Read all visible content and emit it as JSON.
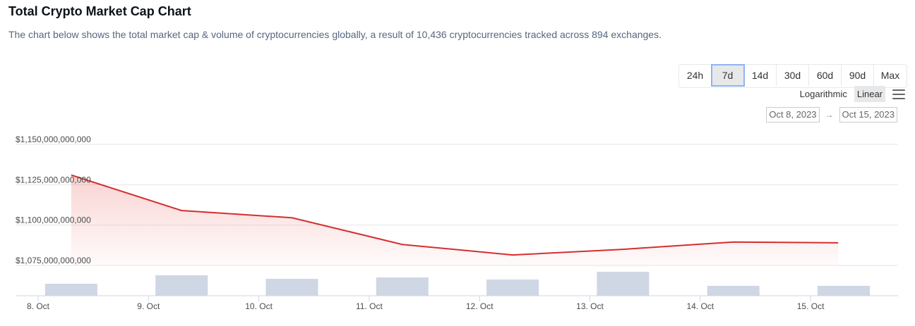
{
  "header": {
    "title": "Total Crypto Market Cap Chart",
    "subtitle": "The chart below shows the total market cap & volume of cryptocurrencies globally, a result of 10,436 cryptocurrencies tracked across 894 exchanges."
  },
  "controls": {
    "ranges": [
      "24h",
      "7d",
      "14d",
      "30d",
      "60d",
      "90d",
      "Max"
    ],
    "active_range": "7d",
    "scale_options": [
      "Logarithmic",
      "Linear"
    ],
    "active_scale": "Linear",
    "menu_icon": "hamburger-menu-icon",
    "date_from": "Oct 8, 2023",
    "date_arrow": "→",
    "date_to": "Oct 15, 2023"
  },
  "chart_data": {
    "type": "area",
    "title": "",
    "xlabel": "",
    "ylabel": "",
    "x_tick_labels": [
      "8. Oct",
      "9. Oct",
      "10. Oct",
      "11. Oct",
      "12. Oct",
      "13. Oct",
      "14. Oct",
      "15. Oct"
    ],
    "y_tick_labels": [
      "$1,150,000,000,000",
      "$1,125,000,000,000",
      "$1,100,000,000,000",
      "$1,075,000,000,000"
    ],
    "ylim": [
      1075000000000,
      1150000000000
    ],
    "grid": true,
    "series": [
      {
        "kind": "market_cap_line",
        "x": [
          8.3,
          9.3,
          10.3,
          11.3,
          12.3,
          13.3,
          14.3,
          15.25
        ],
        "values": [
          1131000000000,
          1109000000000,
          1104500000000,
          1088000000000,
          1081500000000,
          1085000000000,
          1089500000000,
          1089000000000
        ],
        "color": "#d32f2f"
      },
      {
        "kind": "volume_bars",
        "x": [
          8.3,
          9.3,
          10.3,
          11.3,
          12.3,
          13.3,
          14.3,
          15.3
        ],
        "values": [
          17,
          29,
          24,
          26,
          23,
          34,
          14,
          14
        ],
        "color": "#cfd6e4"
      }
    ]
  }
}
